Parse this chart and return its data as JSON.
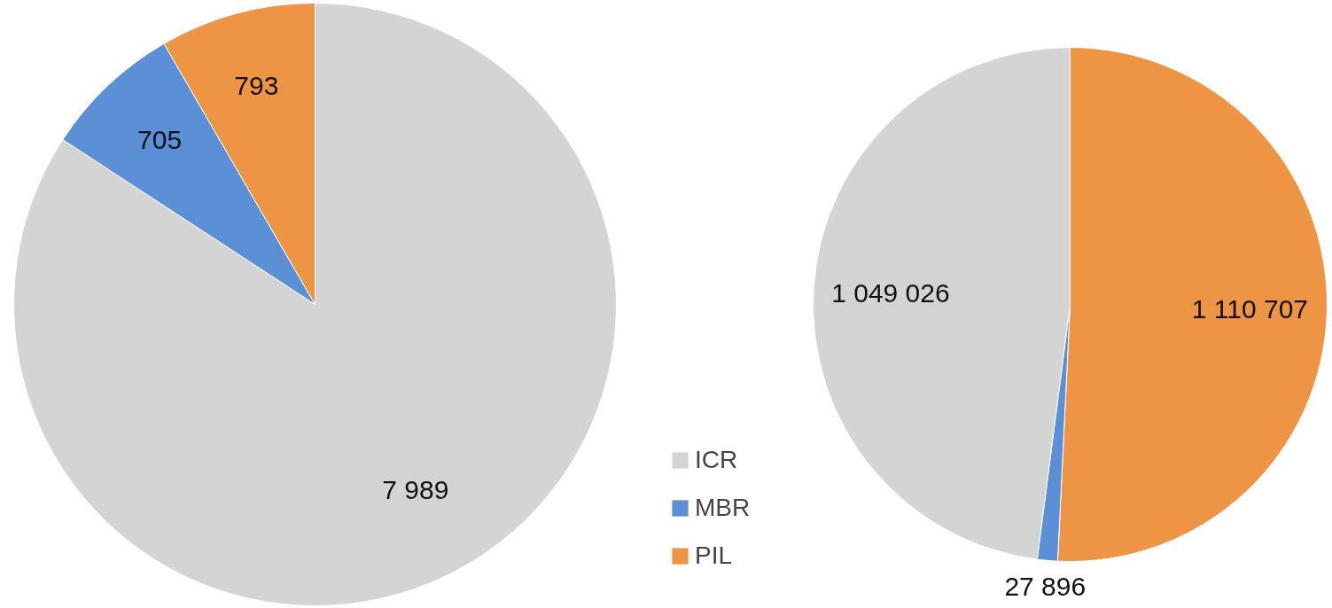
{
  "chart_data": [
    {
      "type": "pie",
      "categories": [
        "ICR",
        "MBR",
        "PIL"
      ],
      "values": [
        7989,
        705,
        793
      ],
      "colors": [
        "#d4d4d4",
        "#5b8fd6",
        "#ee9445"
      ],
      "data_labels": true,
      "value_labels": [
        "7 989",
        "705",
        "793"
      ],
      "legend": "right"
    },
    {
      "type": "pie",
      "categories": [
        null,
        null,
        null
      ],
      "values": [
        1110707,
        27896,
        1049026
      ],
      "colors": [
        "#ee9445",
        "#5b8fd6",
        "#d4d4d4"
      ],
      "data_labels": true,
      "value_labels": [
        "1 110 707",
        "27 896",
        "1 049 026"
      ]
    }
  ]
}
